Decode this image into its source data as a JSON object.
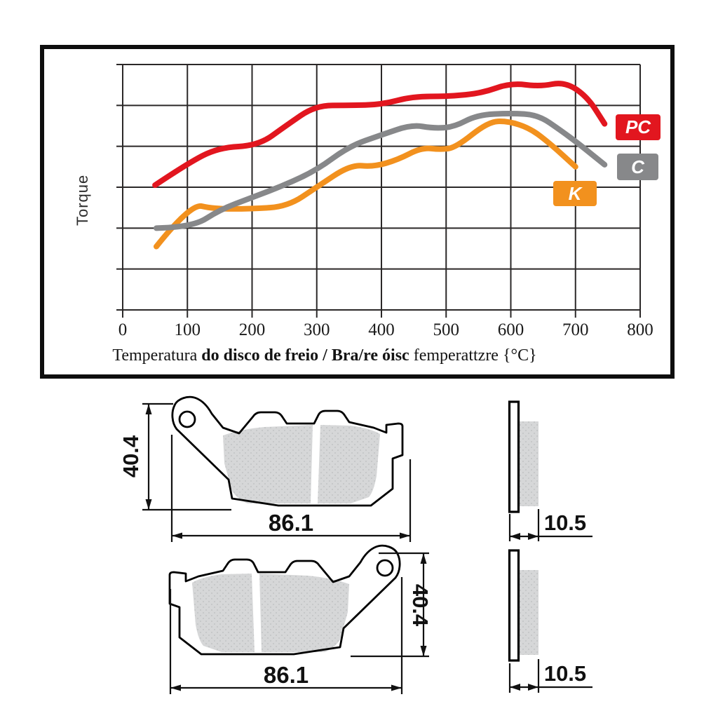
{
  "chart": {
    "ylabel": "Torque",
    "x_ticks": [
      "0",
      "100",
      "200",
      "300",
      "400",
      "500",
      "600",
      "700",
      "800"
    ],
    "title_segments": [
      {
        "text": "Temperatura ",
        "bold": false
      },
      {
        "text": "do disco de freio / Bra/re óisc",
        "bold": true
      },
      {
        "text": " femperattzre {°C}",
        "bold": false
      }
    ]
  },
  "chart_data": {
    "type": "line",
    "title": "Temperatura do disco de freio / Bra/re óisc femperattzre {°C}",
    "xlabel": "Temperatura do disco de freio (°C)",
    "ylabel": "Torque",
    "xlim": [
      0,
      800
    ],
    "ylim": [
      0,
      6
    ],
    "x_tick_step": 100,
    "y_gridline_rows": 6,
    "grid": true,
    "legend_position": "right-inside",
    "series": [
      {
        "name": "PC",
        "color": "#e2161f",
        "points": [
          [
            50,
            3.05
          ],
          [
            100,
            3.58
          ],
          [
            148,
            3.97
          ],
          [
            210,
            4.02
          ],
          [
            252,
            4.5
          ],
          [
            298,
            5.0
          ],
          [
            350,
            5.0
          ],
          [
            400,
            5.02
          ],
          [
            448,
            5.22
          ],
          [
            505,
            5.22
          ],
          [
            555,
            5.3
          ],
          [
            600,
            5.55
          ],
          [
            645,
            5.46
          ],
          [
            683,
            5.58
          ],
          [
            718,
            5.22
          ],
          [
            745,
            4.55
          ]
        ]
      },
      {
        "name": "C",
        "color": "#87888a",
        "points": [
          [
            52,
            2.0
          ],
          [
            108,
            2.02
          ],
          [
            150,
            2.45
          ],
          [
            200,
            2.75
          ],
          [
            250,
            3.05
          ],
          [
            300,
            3.42
          ],
          [
            350,
            4.0
          ],
          [
            400,
            4.28
          ],
          [
            447,
            4.53
          ],
          [
            480,
            4.44
          ],
          [
            512,
            4.47
          ],
          [
            548,
            4.77
          ],
          [
            600,
            4.81
          ],
          [
            642,
            4.77
          ],
          [
            678,
            4.38
          ],
          [
            706,
            4.05
          ],
          [
            745,
            3.55
          ]
        ]
      },
      {
        "name": "K",
        "color": "#f2911e",
        "points": [
          [
            52,
            1.55
          ],
          [
            105,
            2.6
          ],
          [
            140,
            2.47
          ],
          [
            200,
            2.47
          ],
          [
            255,
            2.53
          ],
          [
            300,
            3.0
          ],
          [
            352,
            3.55
          ],
          [
            388,
            3.5
          ],
          [
            425,
            3.67
          ],
          [
            462,
            3.97
          ],
          [
            492,
            3.92
          ],
          [
            515,
            3.97
          ],
          [
            565,
            4.6
          ],
          [
            595,
            4.62
          ],
          [
            630,
            4.44
          ],
          [
            662,
            4.05
          ],
          [
            700,
            3.5
          ]
        ]
      }
    ]
  },
  "drawings": {
    "pad_height_label": "40.4",
    "pad_width_label": "86.1",
    "pad_thickness_label": "10.5"
  },
  "colors": {
    "grid": "#2b2828",
    "frame": "#0e0e0e",
    "friction_gray": "#d6d7d8",
    "friction_dot": "#bcbdbf",
    "pc_red": "#e2161f",
    "c_gray": "#87888a",
    "k_orange": "#f2911e"
  }
}
